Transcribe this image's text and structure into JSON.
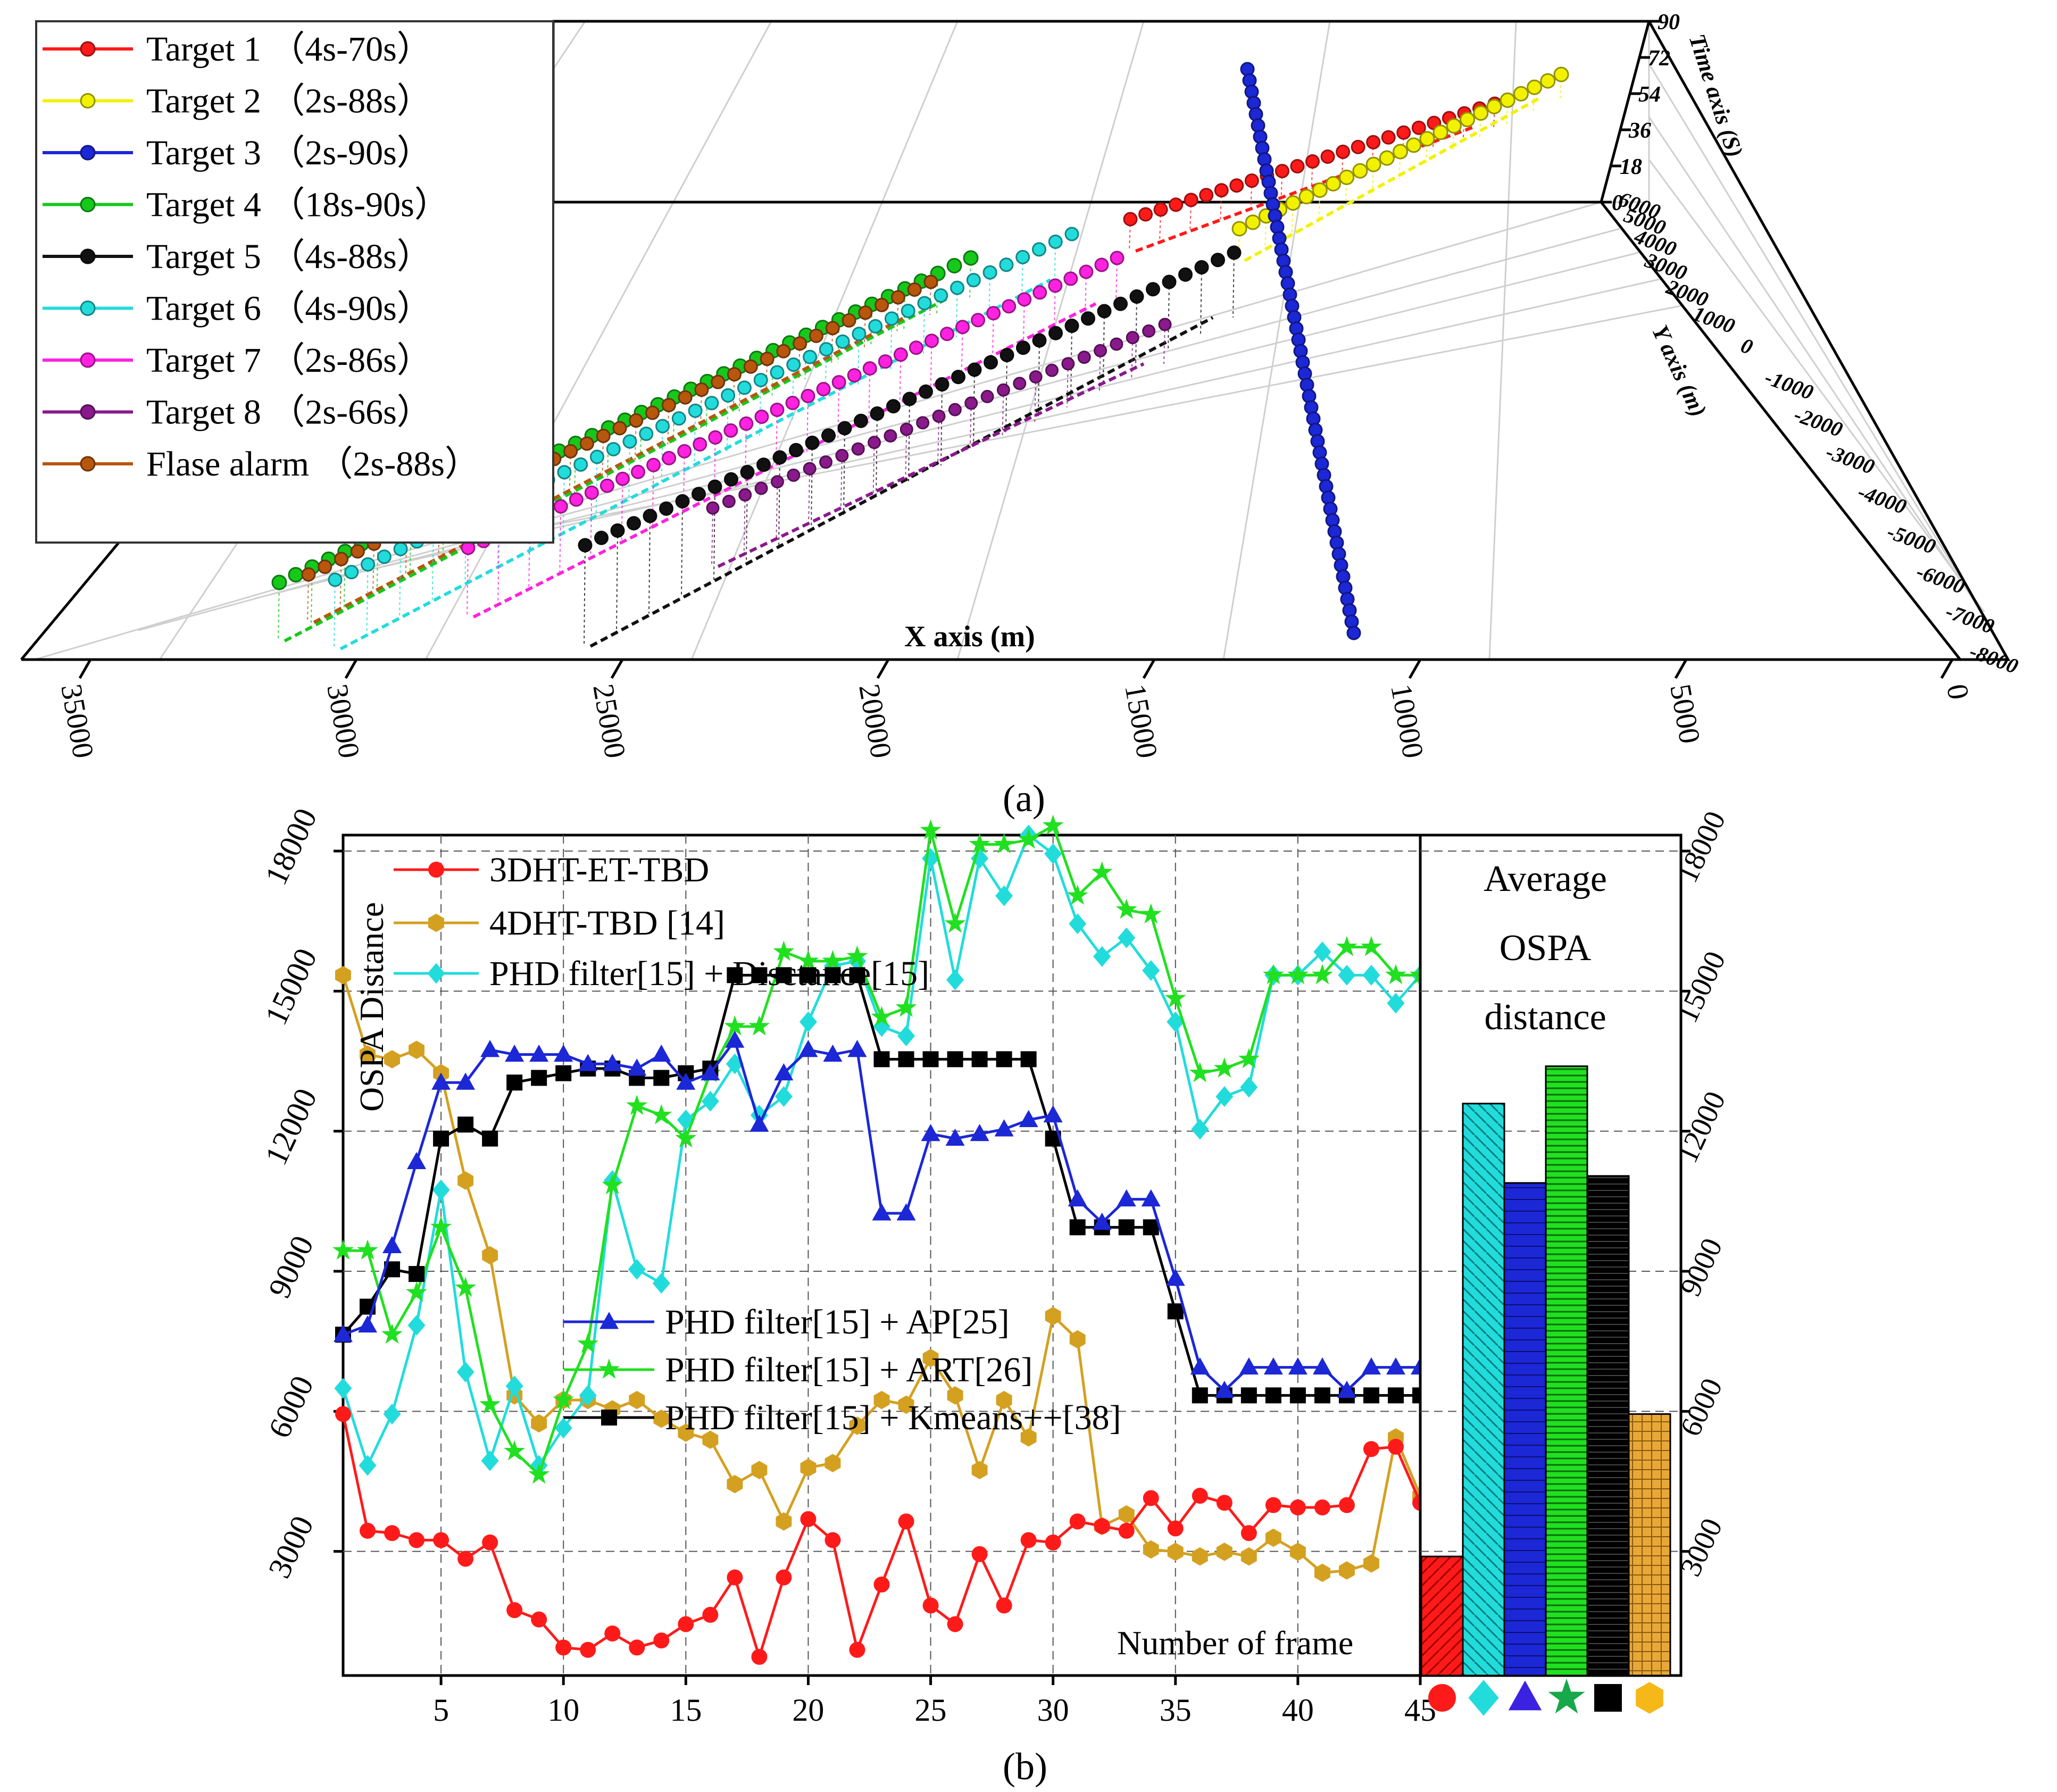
{
  "panel_a": {
    "caption": "(a)",
    "xlabel": "X axis (m)",
    "ylabel": "Y axis (m)",
    "zlabel": "Time axis (S)",
    "x_ticks": [
      "35000",
      "30000",
      "25000",
      "20000",
      "15000",
      "10000",
      "5000",
      "0"
    ],
    "y_ticks": [
      "-8000",
      "-7000",
      "-6000",
      "-5000",
      "-4000",
      "-3000",
      "-2000",
      "-1000",
      "0",
      "1000",
      "2000",
      "3000",
      "4000",
      "5000",
      "6000"
    ],
    "z_ticks": [
      "0",
      "18",
      "36",
      "54",
      "72",
      "90"
    ],
    "legend": [
      {
        "label": "Target 1 （4s-70s）",
        "color": "#ff1a1a"
      },
      {
        "label": "Target 2 （2s-88s）",
        "color": "#f2f200"
      },
      {
        "label": "Target 3 （2s-90s）",
        "color": "#1c27d6"
      },
      {
        "label": "Target 4 （18s-90s）",
        "color": "#16c81a"
      },
      {
        "label": "Target 5 （4s-88s）",
        "color": "#111111"
      },
      {
        "label": "Target 6 （4s-90s）",
        "color": "#22dcdc"
      },
      {
        "label": "Target 7 （2s-86s）",
        "color": "#ff22e0"
      },
      {
        "label": "Target 8 （2s-66s）",
        "color": "#8a1a8c"
      },
      {
        "label": "Flase alarm （2s-88s）",
        "color": "#b8560e"
      }
    ]
  },
  "panel_b": {
    "caption": "(b)",
    "bar_title_line1": "Average",
    "bar_title_line2": "OSPA",
    "bar_title_line3": "distance",
    "markers": [
      "circle",
      "diamond",
      "triangle",
      "star",
      "square",
      "hexagon"
    ]
  },
  "chart_data": [
    {
      "type": "line",
      "title": "",
      "xlabel": "Number of frame",
      "ylabel": "OSPA Distance",
      "xlim": [
        1,
        45
      ],
      "ylim": [
        0,
        18000
      ],
      "x_ticks": [
        5,
        10,
        15,
        20,
        25,
        30,
        35,
        40,
        45
      ],
      "y_ticks": [
        3000,
        6000,
        9000,
        12000,
        15000,
        18000
      ],
      "x": [
        1,
        2,
        3,
        4,
        5,
        6,
        7,
        8,
        9,
        10,
        11,
        12,
        13,
        14,
        15,
        16,
        17,
        18,
        19,
        20,
        21,
        22,
        23,
        24,
        25,
        26,
        27,
        28,
        29,
        30,
        31,
        32,
        33,
        34,
        35,
        36,
        37,
        38,
        39,
        40,
        41,
        42,
        43,
        44,
        45
      ],
      "series": [
        {
          "name": "3DHT-ET-TBD",
          "color": "#ff1a1a",
          "marker": "circle",
          "values": [
            5600,
            3100,
            3050,
            2900,
            2900,
            2500,
            2850,
            1400,
            1200,
            600,
            550,
            900,
            600,
            750,
            1100,
            1300,
            2100,
            400,
            2100,
            3350,
            2900,
            550,
            1950,
            3300,
            1500,
            1100,
            2600,
            1500,
            2900,
            2850,
            3300,
            3200,
            3100,
            3800,
            3150,
            3850,
            3700,
            3050,
            3650,
            3600,
            3600,
            3650,
            4850,
            4900,
            3700
          ]
        },
        {
          "name": "4DHT-TBD [14]",
          "color": "#d4a020",
          "marker": "hexagon",
          "values": [
            15000,
            13300,
            13200,
            13400,
            12900,
            10600,
            9000,
            6000,
            5400,
            5900,
            5900,
            5700,
            5900,
            5500,
            5200,
            5050,
            4100,
            4400,
            3300,
            4450,
            4550,
            5350,
            5900,
            5800,
            6800,
            6000,
            4400,
            5900,
            5100,
            7700,
            7200,
            3200,
            3450,
            2700,
            2650,
            2550,
            2650,
            2550,
            2950,
            2650,
            2200,
            2250,
            2400,
            5100,
            3850
          ]
        },
        {
          "name": "PHD filter[15] + Disctance[15]",
          "color": "#22dcdc",
          "marker": "diamond",
          "values": [
            6150,
            4500,
            5600,
            7500,
            10400,
            6500,
            4600,
            6200,
            4500,
            5300,
            6000,
            10600,
            8700,
            8400,
            11900,
            12300,
            13100,
            12000,
            12400,
            14000,
            15200,
            15300,
            13900,
            13700,
            17500,
            14900,
            17500,
            16700,
            18000,
            17600,
            16100,
            15400,
            15800,
            15100,
            14000,
            11700,
            12400,
            12600,
            15000,
            15000,
            15500,
            15000,
            15000,
            14400,
            15000
          ]
        },
        {
          "name": "PHD filter[15] + AP[25]",
          "color": "#1c27d6",
          "marker": "triangle",
          "values": [
            7300,
            7500,
            9200,
            11000,
            12700,
            12700,
            13400,
            13300,
            13300,
            13300,
            13100,
            13100,
            13000,
            13300,
            12700,
            12900,
            13600,
            11800,
            12900,
            13400,
            13300,
            13400,
            9900,
            9900,
            11600,
            11500,
            11600,
            11700,
            11900,
            12000,
            10200,
            9700,
            10200,
            10200,
            8500,
            6600,
            6100,
            6600,
            6600,
            6600,
            6600,
            6100,
            6600,
            6600,
            6600
          ]
        },
        {
          "name": "PHD filter[15] + ART[26]",
          "color": "#20e020",
          "marker": "star",
          "values": [
            9100,
            9100,
            7300,
            8200,
            9600,
            8300,
            5800,
            4800,
            4300,
            5900,
            7100,
            10500,
            12200,
            12000,
            11500,
            12900,
            13900,
            13900,
            15500,
            15300,
            15300,
            15400,
            14100,
            14300,
            18100,
            16100,
            17800,
            17800,
            17900,
            18200,
            16700,
            17200,
            16400,
            16300,
            14500,
            12900,
            13000,
            13200,
            15000,
            15000,
            15000,
            15600,
            15600,
            15000,
            15000
          ]
        },
        {
          "name": "PHD filter[15] + Kmeans++[38]",
          "color": "#000000",
          "marker": "square",
          "values": [
            7300,
            7900,
            8700,
            8600,
            11500,
            11800,
            11500,
            12700,
            12800,
            12900,
            13000,
            13000,
            12800,
            12800,
            12900,
            13000,
            15000,
            15000,
            15000,
            15000,
            15000,
            15000,
            13200,
            13200,
            13200,
            13200,
            13200,
            13200,
            13200,
            11500,
            9600,
            9600,
            9600,
            9600,
            7800,
            6000,
            6000,
            6000,
            6000,
            6000,
            6000,
            6000,
            6000,
            6000,
            6000
          ]
        }
      ]
    },
    {
      "type": "bar",
      "title": "Average OSPA distance",
      "categories": [
        "3DHT-ET-TBD",
        "PHD filter[15] + Disctance[15]",
        "PHD filter[15] + AP[25]",
        "PHD filter[15] + ART[26]",
        "PHD filter[15] + Kmeans++[38]",
        "4DHT-TBD [14]"
      ],
      "values": [
        2550,
        12250,
        10550,
        13050,
        10700,
        5600
      ],
      "colors": [
        "#ff1a1a",
        "#22dcdc",
        "#1c27d6",
        "#20e020",
        "#000000",
        "#e8a838"
      ],
      "ylim": [
        0,
        18000
      ],
      "y_ticks": [
        3000,
        6000,
        9000,
        12000,
        15000,
        18000
      ]
    }
  ]
}
